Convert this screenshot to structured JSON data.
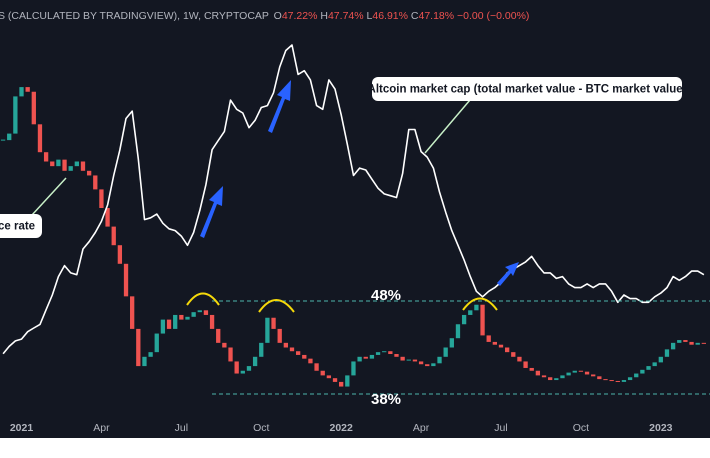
{
  "chart_data": {
    "type": "candlestick",
    "title": "S (CALCULATED BY TRADINGVIEW), 1W, CRYPTOCAP",
    "ohlc": [
      {
        "key": "O",
        "text": "47.22%"
      },
      {
        "key": "H",
        "text": "47.74%"
      },
      {
        "key": "L",
        "text": "46.91%"
      },
      {
        "key": "C",
        "text": "47.18%"
      }
    ],
    "change": "−0.00 (−0.00%)",
    "xlim": [
      -0.5,
      115
    ],
    "xticks": [
      {
        "value": 3,
        "label": "2021"
      },
      {
        "value": 16,
        "label": "Apr"
      },
      {
        "value": 29,
        "label": "Jul"
      },
      {
        "value": 42,
        "label": "Oct"
      },
      {
        "value": 55,
        "label": "2022"
      },
      {
        "value": 68,
        "label": "Apr"
      },
      {
        "value": 81,
        "label": "Jul"
      },
      {
        "value": 94,
        "label": "Oct"
      },
      {
        "value": 107,
        "label": "2023"
      }
    ],
    "ylim": [
      36,
      78
    ],
    "y2lim": [
      -0.25,
      1.875
    ],
    "series": [
      {
        "up_color": "#26a69a",
        "down_color": "#ef5350",
        "values": [
          65.3,
          66,
          70,
          71,
          70.5,
          67,
          64,
          63,
          62.5,
          63.2,
          62,
          62.5,
          63,
          62,
          61.5,
          60,
          58,
          56,
          54,
          52,
          48.5,
          45,
          41,
          42,
          42.5,
          44.5,
          46,
          45,
          46.5,
          46,
          46.3,
          46.8,
          47,
          46.5,
          45,
          43.5,
          43,
          41.5,
          40.2,
          40.5,
          41,
          42,
          43.5,
          46.2,
          45,
          43.5,
          43,
          42.6,
          42.2,
          41.8,
          41.3,
          40.5,
          40,
          39.7,
          39.3,
          38.8,
          40,
          41.5,
          42,
          41.8,
          42.2,
          42.5,
          42.6,
          42.3,
          42,
          41.6,
          41.7,
          41.5,
          41.2,
          41,
          41.3,
          42,
          43,
          44,
          45.5,
          46.5,
          47,
          47.6,
          44.3,
          43.6,
          43.3,
          43,
          42.5,
          42,
          41.5,
          40.8,
          40.5,
          40,
          39.8,
          39.5,
          39.7,
          40,
          40.3,
          40.5,
          40.4,
          40.1,
          39.9,
          39.6,
          39.5,
          39.4,
          39.3,
          39.5,
          39.8,
          40.2,
          40.6,
          41,
          41.4,
          42,
          42.8,
          43.5,
          43.8,
          43.6,
          43.3,
          43.5,
          43.4
        ]
      },
      {
        "type": "line",
        "axis": "y2",
        "color": "#ffffff",
        "values": [
          0.07,
          0.11,
          0.14,
          0.15,
          0.19,
          0.21,
          0.23,
          0.31,
          0.39,
          0.49,
          0.55,
          0.51,
          0.5,
          0.64,
          0.68,
          0.73,
          0.79,
          0.88,
          1.04,
          1.18,
          1.35,
          1.39,
          1.13,
          0.8,
          0.81,
          0.83,
          0.78,
          0.75,
          0.74,
          0.71,
          0.66,
          0.73,
          0.85,
          0.99,
          1.18,
          1.23,
          1.28,
          1.45,
          1.4,
          1.38,
          1.3,
          1.34,
          1.41,
          1.42,
          1.49,
          1.63,
          1.72,
          1.75,
          1.59,
          1.61,
          1.56,
          1.42,
          1.4,
          1.56,
          1.51,
          1.37,
          1.21,
          1.04,
          1.08,
          1.07,
          1.02,
          0.97,
          0.94,
          0.93,
          0.92,
          1.05,
          1.29,
          1.29,
          1.17,
          1.14,
          1.08,
          0.95,
          0.84,
          0.74,
          0.66,
          0.58,
          0.49,
          0.41,
          0.38,
          0.41,
          0.43,
          0.46,
          0.51,
          0.53,
          0.55,
          0.57,
          0.6,
          0.55,
          0.51,
          0.51,
          0.48,
          0.49,
          0.45,
          0.43,
          0.43,
          0.45,
          0.43,
          0.45,
          0.45,
          0.41,
          0.35,
          0.39,
          0.37,
          0.37,
          0.35,
          0.35,
          0.38,
          0.4,
          0.43,
          0.49,
          0.47,
          0.49,
          0.52,
          0.52,
          0.5
        ]
      }
    ],
    "levels": [
      {
        "value": 48,
        "label": "48%",
        "color": "#4db6ac"
      },
      {
        "value": 38,
        "label": "38%",
        "color": "#4db6ac"
      }
    ],
    "annotations": [
      {
        "text": "Altcoin market cap (total market value - BTC market value)"
      },
      {
        "text": "ce rate"
      }
    ]
  }
}
